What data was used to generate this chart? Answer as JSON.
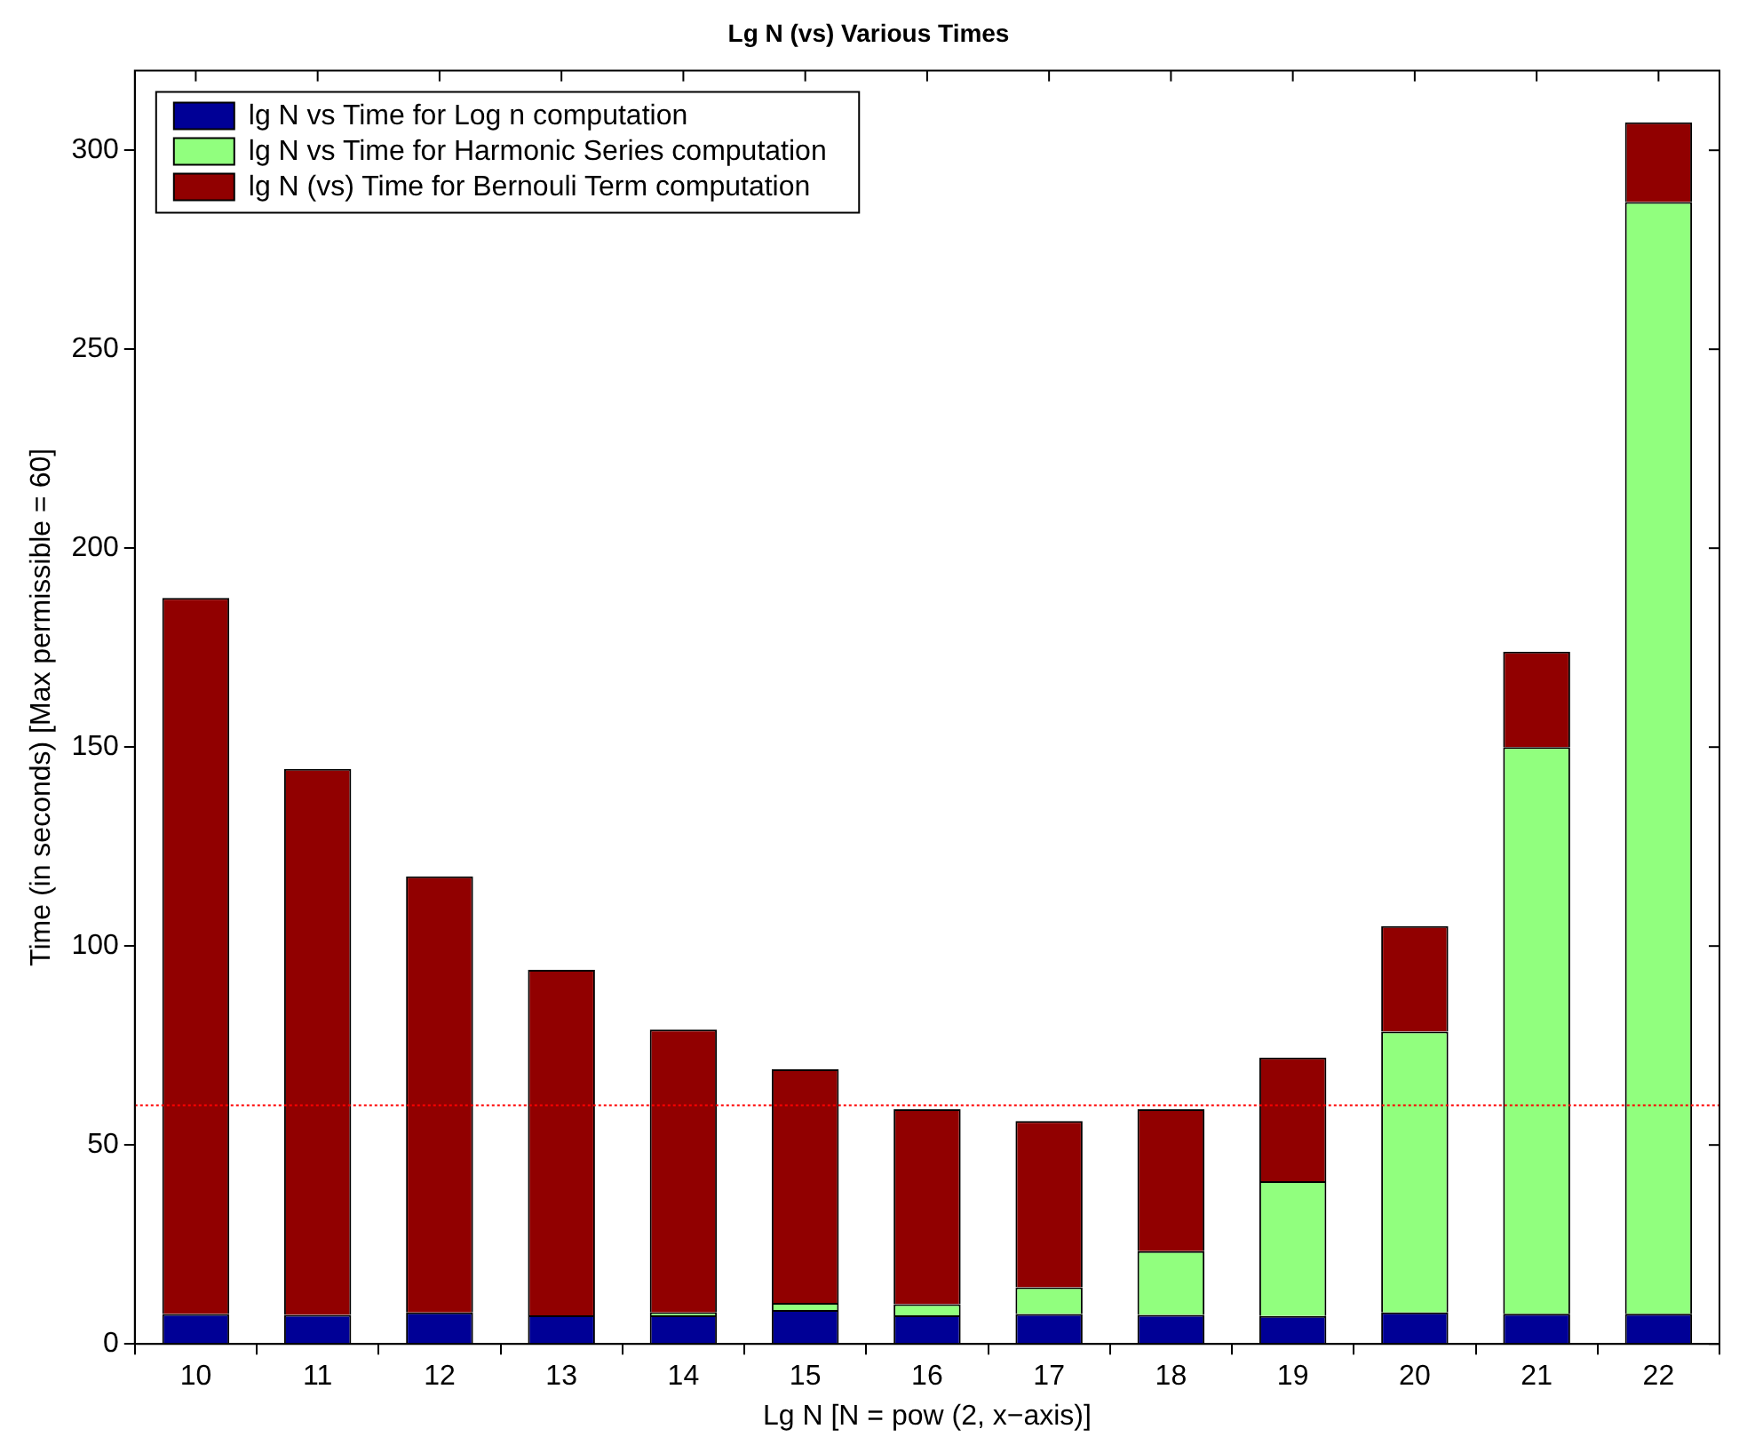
{
  "chart_data": {
    "type": "bar",
    "title": "Lg N (vs) Various Times",
    "xlabel": "Lg N [N = pow (2, x−axis)]",
    "ylabel": "Time (in seconds) [Max permissible = 60]",
    "categories": [
      "10",
      "11",
      "12",
      "13",
      "14",
      "15",
      "16",
      "17",
      "18",
      "19",
      "20",
      "21",
      "22"
    ],
    "stacked": true,
    "series": [
      {
        "name": "lg N vs Time for Log n computation",
        "color": "#000096",
        "values": [
          7.5,
          7.3,
          7.9,
          7.2,
          7.2,
          8.5,
          7.2,
          7.5,
          7.3,
          7.0,
          7.9,
          7.6,
          7.6
        ]
      },
      {
        "name": "lg N vs Time for Harmonic Series computation",
        "color": "#91ff7e",
        "values": [
          0,
          0,
          0,
          0,
          0.7,
          1.8,
          2.8,
          6.7,
          16,
          33.9,
          70.6,
          142.4,
          279.4
        ]
      },
      {
        "name": "lg N (vs) Time for Bernouli Term computation",
        "color": "#910000",
        "values": [
          180,
          137.2,
          109.6,
          86.8,
          71.1,
          58.7,
          49,
          41.8,
          35.7,
          31.1,
          26.5,
          24,
          20
        ]
      }
    ],
    "ylim": [
      0,
      320
    ],
    "yticks": [
      0,
      50,
      100,
      150,
      200,
      250,
      300
    ],
    "ref_lines": [
      {
        "axis": "y",
        "value": 60,
        "color": "#ff0000",
        "line_style": "dotted"
      }
    ],
    "legend": "top left",
    "grid": false
  }
}
